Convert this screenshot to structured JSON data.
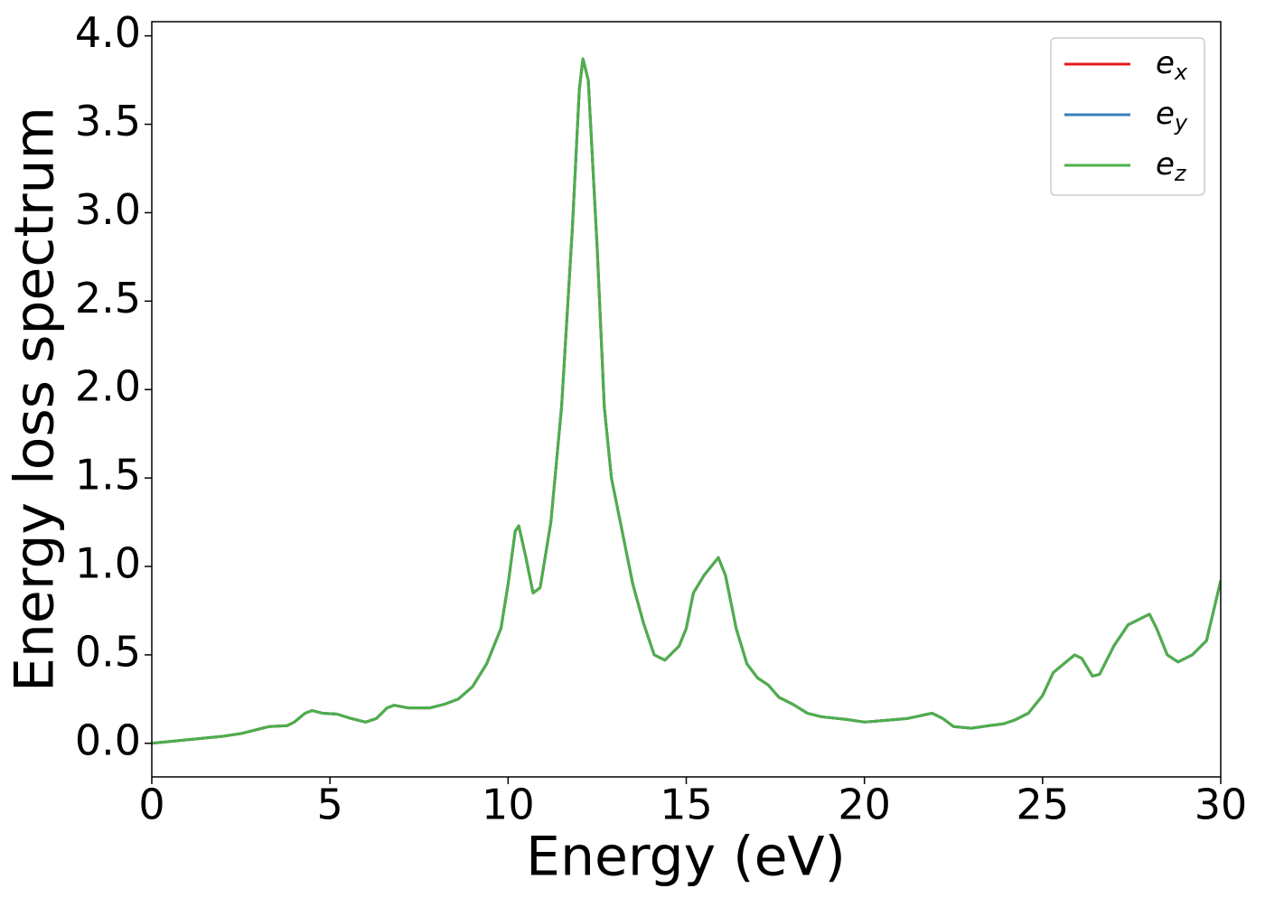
{
  "chart_data": {
    "type": "line",
    "xlabel": "Energy (eV)",
    "ylabel": "Energy loss spectrum",
    "x": [
      0,
      1,
      2,
      2.5,
      3,
      3.3,
      3.8,
      4.0,
      4.3,
      4.5,
      4.8,
      5.2,
      5.6,
      6.0,
      6.3,
      6.6,
      6.8,
      7.2,
      7.8,
      8.2,
      8.6,
      9.0,
      9.4,
      9.8,
      10.0,
      10.2,
      10.3,
      10.5,
      10.7,
      10.9,
      11.2,
      11.5,
      11.8,
      12.0,
      12.1,
      12.25,
      12.5,
      12.7,
      12.9,
      13.2,
      13.5,
      13.8,
      14.1,
      14.4,
      14.8,
      15.0,
      15.2,
      15.5,
      15.9,
      16.1,
      16.4,
      16.7,
      17.0,
      17.3,
      17.6,
      18.0,
      18.4,
      18.8,
      19.5,
      20.0,
      20.6,
      21.2,
      21.9,
      22.2,
      22.5,
      23.0,
      23.5,
      23.9,
      24.2,
      24.6,
      25.0,
      25.3,
      25.6,
      25.9,
      26.1,
      26.4,
      26.6,
      27.0,
      27.4,
      27.7,
      28.0,
      28.2,
      28.5,
      28.8,
      29.2,
      29.6,
      30.0
    ],
    "series": [
      {
        "name": "e",
        "subscript": "x",
        "color": "#e41a1c",
        "values": [
          0,
          0.02,
          0.04,
          0.055,
          0.08,
          0.095,
          0.1,
          0.12,
          0.17,
          0.185,
          0.17,
          0.165,
          0.14,
          0.12,
          0.14,
          0.2,
          0.215,
          0.2,
          0.2,
          0.22,
          0.25,
          0.32,
          0.45,
          0.65,
          0.9,
          1.2,
          1.23,
          1.05,
          0.85,
          0.88,
          1.25,
          1.9,
          2.9,
          3.7,
          3.87,
          3.75,
          2.8,
          1.9,
          1.5,
          1.2,
          0.9,
          0.68,
          0.5,
          0.47,
          0.55,
          0.65,
          0.85,
          0.95,
          1.05,
          0.95,
          0.65,
          0.45,
          0.37,
          0.33,
          0.26,
          0.22,
          0.17,
          0.15,
          0.135,
          0.12,
          0.13,
          0.14,
          0.17,
          0.14,
          0.095,
          0.085,
          0.1,
          0.11,
          0.13,
          0.17,
          0.27,
          0.4,
          0.45,
          0.5,
          0.48,
          0.38,
          0.39,
          0.55,
          0.67,
          0.7,
          0.73,
          0.65,
          0.5,
          0.46,
          0.5,
          0.58,
          0.92
        ]
      },
      {
        "name": "e",
        "subscript": "y",
        "color": "#377eb8",
        "values": [
          0,
          0.02,
          0.04,
          0.055,
          0.08,
          0.095,
          0.1,
          0.12,
          0.17,
          0.185,
          0.17,
          0.165,
          0.14,
          0.12,
          0.14,
          0.2,
          0.215,
          0.2,
          0.2,
          0.22,
          0.25,
          0.32,
          0.45,
          0.65,
          0.9,
          1.2,
          1.23,
          1.05,
          0.85,
          0.88,
          1.25,
          1.9,
          2.9,
          3.7,
          3.87,
          3.75,
          2.8,
          1.9,
          1.5,
          1.2,
          0.9,
          0.68,
          0.5,
          0.47,
          0.55,
          0.65,
          0.85,
          0.95,
          1.05,
          0.95,
          0.65,
          0.45,
          0.37,
          0.33,
          0.26,
          0.22,
          0.17,
          0.15,
          0.135,
          0.12,
          0.13,
          0.14,
          0.17,
          0.14,
          0.095,
          0.085,
          0.1,
          0.11,
          0.13,
          0.17,
          0.27,
          0.4,
          0.45,
          0.5,
          0.48,
          0.38,
          0.39,
          0.55,
          0.67,
          0.7,
          0.73,
          0.65,
          0.5,
          0.46,
          0.5,
          0.58,
          0.92
        ]
      },
      {
        "name": "e",
        "subscript": "z",
        "color": "#4daf4a",
        "values": [
          0,
          0.02,
          0.04,
          0.055,
          0.08,
          0.095,
          0.1,
          0.12,
          0.17,
          0.185,
          0.17,
          0.165,
          0.14,
          0.12,
          0.14,
          0.2,
          0.215,
          0.2,
          0.2,
          0.22,
          0.25,
          0.32,
          0.45,
          0.65,
          0.9,
          1.2,
          1.23,
          1.05,
          0.85,
          0.88,
          1.25,
          1.9,
          2.9,
          3.7,
          3.87,
          3.75,
          2.8,
          1.9,
          1.5,
          1.2,
          0.9,
          0.68,
          0.5,
          0.47,
          0.55,
          0.65,
          0.85,
          0.95,
          1.05,
          0.95,
          0.65,
          0.45,
          0.37,
          0.33,
          0.26,
          0.22,
          0.17,
          0.15,
          0.135,
          0.12,
          0.13,
          0.14,
          0.17,
          0.14,
          0.095,
          0.085,
          0.1,
          0.11,
          0.13,
          0.17,
          0.27,
          0.4,
          0.45,
          0.5,
          0.48,
          0.38,
          0.39,
          0.55,
          0.67,
          0.7,
          0.73,
          0.65,
          0.5,
          0.46,
          0.5,
          0.58,
          0.92
        ]
      }
    ],
    "xlim": [
      0,
      30
    ],
    "xticks": [
      0,
      5,
      10,
      15,
      20,
      25,
      30
    ],
    "ylim": [
      -0.19,
      4.08
    ],
    "yticks": [
      {
        "value": 0,
        "label": "0.0"
      },
      0.5,
      {
        "value": 1,
        "label": "1.0"
      },
      1.5,
      {
        "value": 2,
        "label": "2.0"
      },
      2.5,
      {
        "value": 3,
        "label": "3.0"
      },
      3.5,
      {
        "value": 4,
        "label": "4.0"
      }
    ],
    "legend": "upper right"
  }
}
